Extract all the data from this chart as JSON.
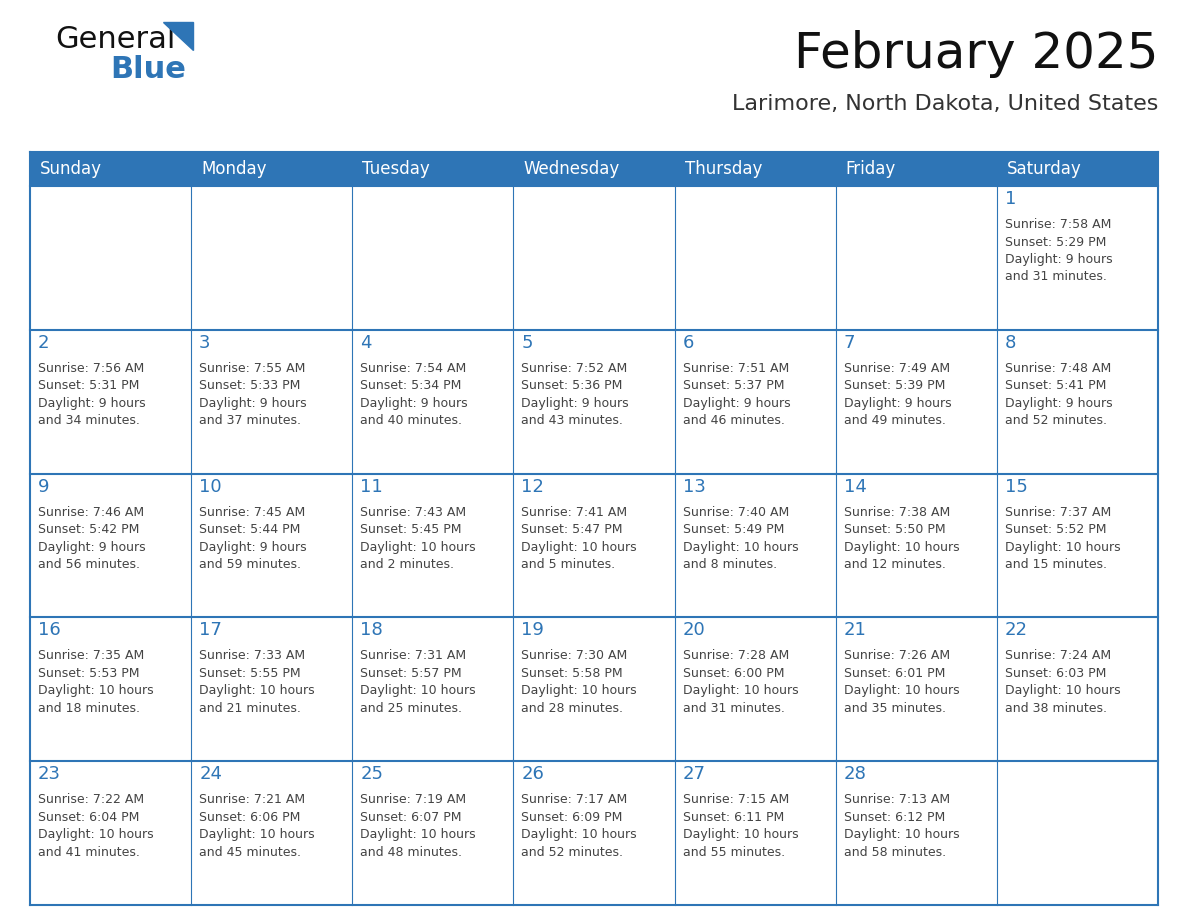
{
  "title": "February 2025",
  "subtitle": "Larimore, North Dakota, United States",
  "header_bg": "#2E75B6",
  "header_text_color": "#FFFFFF",
  "cell_bg": "#FFFFFF",
  "alt_cell_bg": "#F2F2F2",
  "border_color": "#2E75B6",
  "day_number_color": "#2E75B6",
  "cell_text_color": "#444444",
  "days_of_week": [
    "Sunday",
    "Monday",
    "Tuesday",
    "Wednesday",
    "Thursday",
    "Friday",
    "Saturday"
  ],
  "weeks": [
    [
      {
        "day": "",
        "info": ""
      },
      {
        "day": "",
        "info": ""
      },
      {
        "day": "",
        "info": ""
      },
      {
        "day": "",
        "info": ""
      },
      {
        "day": "",
        "info": ""
      },
      {
        "day": "",
        "info": ""
      },
      {
        "day": "1",
        "info": "Sunrise: 7:58 AM\nSunset: 5:29 PM\nDaylight: 9 hours\nand 31 minutes."
      }
    ],
    [
      {
        "day": "2",
        "info": "Sunrise: 7:56 AM\nSunset: 5:31 PM\nDaylight: 9 hours\nand 34 minutes."
      },
      {
        "day": "3",
        "info": "Sunrise: 7:55 AM\nSunset: 5:33 PM\nDaylight: 9 hours\nand 37 minutes."
      },
      {
        "day": "4",
        "info": "Sunrise: 7:54 AM\nSunset: 5:34 PM\nDaylight: 9 hours\nand 40 minutes."
      },
      {
        "day": "5",
        "info": "Sunrise: 7:52 AM\nSunset: 5:36 PM\nDaylight: 9 hours\nand 43 minutes."
      },
      {
        "day": "6",
        "info": "Sunrise: 7:51 AM\nSunset: 5:37 PM\nDaylight: 9 hours\nand 46 minutes."
      },
      {
        "day": "7",
        "info": "Sunrise: 7:49 AM\nSunset: 5:39 PM\nDaylight: 9 hours\nand 49 minutes."
      },
      {
        "day": "8",
        "info": "Sunrise: 7:48 AM\nSunset: 5:41 PM\nDaylight: 9 hours\nand 52 minutes."
      }
    ],
    [
      {
        "day": "9",
        "info": "Sunrise: 7:46 AM\nSunset: 5:42 PM\nDaylight: 9 hours\nand 56 minutes."
      },
      {
        "day": "10",
        "info": "Sunrise: 7:45 AM\nSunset: 5:44 PM\nDaylight: 9 hours\nand 59 minutes."
      },
      {
        "day": "11",
        "info": "Sunrise: 7:43 AM\nSunset: 5:45 PM\nDaylight: 10 hours\nand 2 minutes."
      },
      {
        "day": "12",
        "info": "Sunrise: 7:41 AM\nSunset: 5:47 PM\nDaylight: 10 hours\nand 5 minutes."
      },
      {
        "day": "13",
        "info": "Sunrise: 7:40 AM\nSunset: 5:49 PM\nDaylight: 10 hours\nand 8 minutes."
      },
      {
        "day": "14",
        "info": "Sunrise: 7:38 AM\nSunset: 5:50 PM\nDaylight: 10 hours\nand 12 minutes."
      },
      {
        "day": "15",
        "info": "Sunrise: 7:37 AM\nSunset: 5:52 PM\nDaylight: 10 hours\nand 15 minutes."
      }
    ],
    [
      {
        "day": "16",
        "info": "Sunrise: 7:35 AM\nSunset: 5:53 PM\nDaylight: 10 hours\nand 18 minutes."
      },
      {
        "day": "17",
        "info": "Sunrise: 7:33 AM\nSunset: 5:55 PM\nDaylight: 10 hours\nand 21 minutes."
      },
      {
        "day": "18",
        "info": "Sunrise: 7:31 AM\nSunset: 5:57 PM\nDaylight: 10 hours\nand 25 minutes."
      },
      {
        "day": "19",
        "info": "Sunrise: 7:30 AM\nSunset: 5:58 PM\nDaylight: 10 hours\nand 28 minutes."
      },
      {
        "day": "20",
        "info": "Sunrise: 7:28 AM\nSunset: 6:00 PM\nDaylight: 10 hours\nand 31 minutes."
      },
      {
        "day": "21",
        "info": "Sunrise: 7:26 AM\nSunset: 6:01 PM\nDaylight: 10 hours\nand 35 minutes."
      },
      {
        "day": "22",
        "info": "Sunrise: 7:24 AM\nSunset: 6:03 PM\nDaylight: 10 hours\nand 38 minutes."
      }
    ],
    [
      {
        "day": "23",
        "info": "Sunrise: 7:22 AM\nSunset: 6:04 PM\nDaylight: 10 hours\nand 41 minutes."
      },
      {
        "day": "24",
        "info": "Sunrise: 7:21 AM\nSunset: 6:06 PM\nDaylight: 10 hours\nand 45 minutes."
      },
      {
        "day": "25",
        "info": "Sunrise: 7:19 AM\nSunset: 6:07 PM\nDaylight: 10 hours\nand 48 minutes."
      },
      {
        "day": "26",
        "info": "Sunrise: 7:17 AM\nSunset: 6:09 PM\nDaylight: 10 hours\nand 52 minutes."
      },
      {
        "day": "27",
        "info": "Sunrise: 7:15 AM\nSunset: 6:11 PM\nDaylight: 10 hours\nand 55 minutes."
      },
      {
        "day": "28",
        "info": "Sunrise: 7:13 AM\nSunset: 6:12 PM\nDaylight: 10 hours\nand 58 minutes."
      },
      {
        "day": "",
        "info": ""
      }
    ]
  ],
  "logo_text_general": "General",
  "logo_text_blue": "Blue",
  "logo_triangle_color": "#2E75B6",
  "title_fontsize": 36,
  "subtitle_fontsize": 16,
  "header_fontsize": 12,
  "day_num_fontsize": 13,
  "cell_text_fontsize": 9
}
